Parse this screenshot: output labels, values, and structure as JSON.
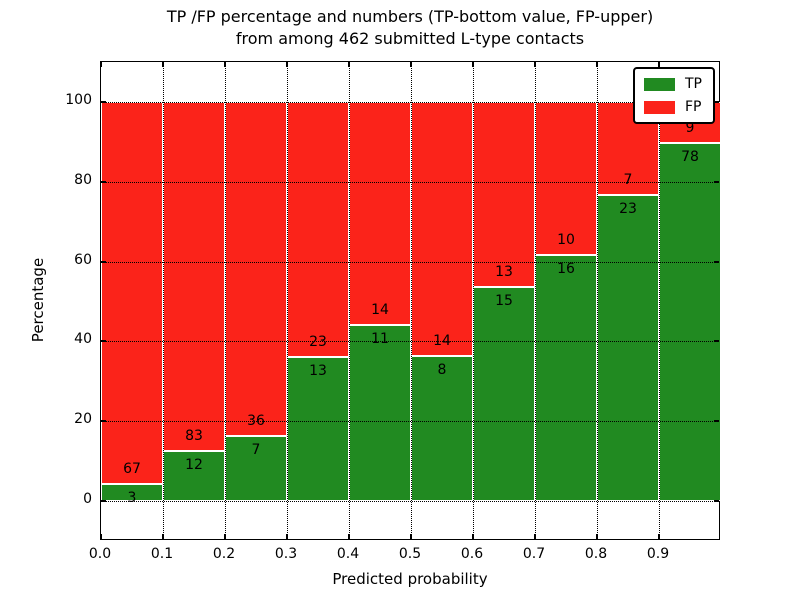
{
  "title": {
    "line1": "TP /FP percentage and numbers (TP-bottom value, FP-upper)",
    "line2": "from among 462 submitted L-type contacts"
  },
  "colors": {
    "tp_green": "#218a21",
    "fp_red": "#fb231a",
    "grid": "#000000",
    "background": "#ffffff"
  },
  "chart_data": {
    "type": "bar",
    "stacked": true,
    "title": "TP /FP percentage and numbers (TP-bottom value, FP-upper)\nfrom among 462 submitted L-type contacts",
    "xlabel": "Predicted probability",
    "ylabel": "Percentage",
    "xlim": [
      0.0,
      1.0
    ],
    "ylim": [
      -10,
      110
    ],
    "x_tick_labels": [
      "0.0",
      "0.1",
      "0.2",
      "0.3",
      "0.4",
      "0.5",
      "0.6",
      "0.7",
      "0.8",
      "0.9"
    ],
    "y_tick_values": [
      0,
      20,
      40,
      60,
      80,
      100
    ],
    "y_tick_labels": [
      "0",
      "20",
      "40",
      "60",
      "80",
      "100"
    ],
    "grid": true,
    "total_contacts": 462,
    "legend": {
      "position": "upper-right",
      "entries": [
        {
          "label": "TP",
          "color": "#218a21"
        },
        {
          "label": "FP",
          "color": "#fb231a"
        }
      ]
    },
    "bins": [
      {
        "range": "0.0-0.1",
        "tp": 3,
        "fp": 67,
        "tp_pct": 4.286,
        "fp_pct": 95.714
      },
      {
        "range": "0.1-0.2",
        "tp": 12,
        "fp": 83,
        "tp_pct": 12.632,
        "fp_pct": 87.368
      },
      {
        "range": "0.2-0.3",
        "tp": 7,
        "fp": 36,
        "tp_pct": 16.279,
        "fp_pct": 83.721
      },
      {
        "range": "0.3-0.4",
        "tp": 13,
        "fp": 23,
        "tp_pct": 36.111,
        "fp_pct": 63.889
      },
      {
        "range": "0.4-0.5",
        "tp": 11,
        "fp": 14,
        "tp_pct": 44.0,
        "fp_pct": 56.0
      },
      {
        "range": "0.5-0.6",
        "tp": 8,
        "fp": 14,
        "tp_pct": 36.364,
        "fp_pct": 63.636
      },
      {
        "range": "0.6-0.7",
        "tp": 15,
        "fp": 13,
        "tp_pct": 53.571,
        "fp_pct": 46.429
      },
      {
        "range": "0.7-0.8",
        "tp": 16,
        "fp": 10,
        "tp_pct": 61.538,
        "fp_pct": 38.462
      },
      {
        "range": "0.8-0.9",
        "tp": 23,
        "fp": 7,
        "tp_pct": 76.667,
        "fp_pct": 23.333
      },
      {
        "range": "0.9-1.0",
        "tp": 78,
        "fp": 9,
        "tp_pct": 89.655,
        "fp_pct": 10.345
      }
    ]
  }
}
